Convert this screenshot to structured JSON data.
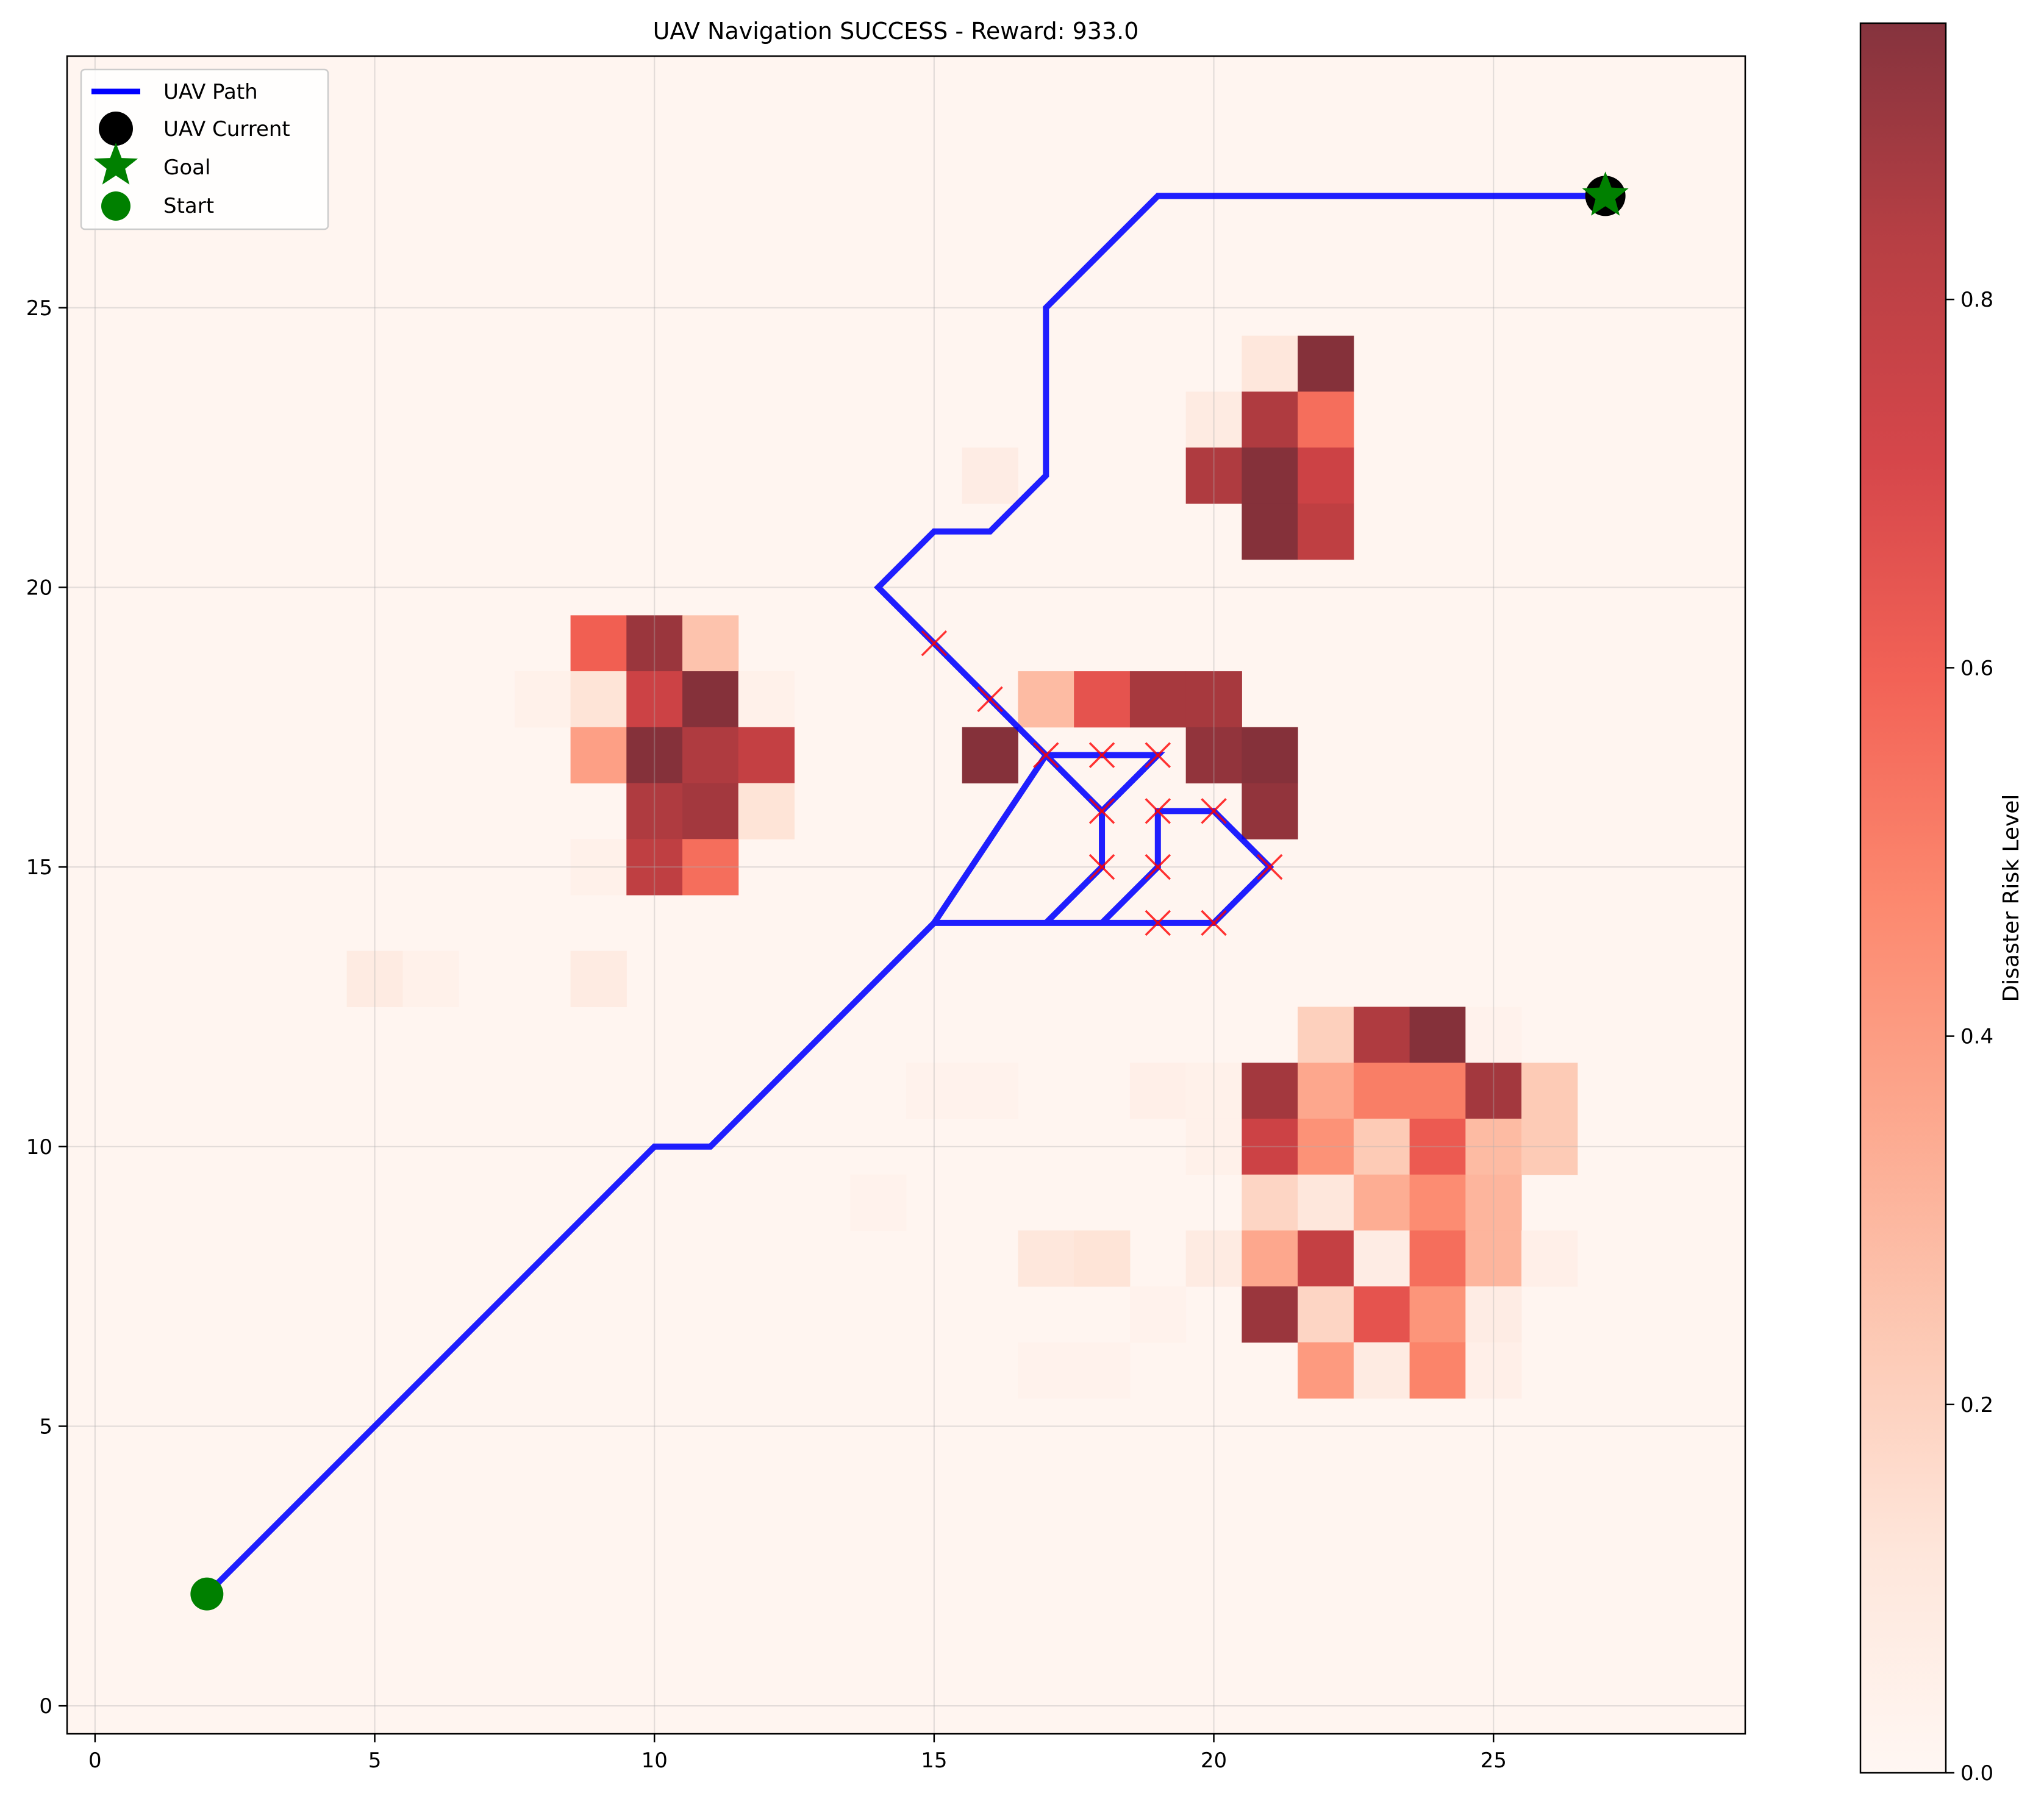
{
  "chart_data": {
    "type": "heatmap",
    "title": "UAV Navigation SUCCESS - Reward: 933.0",
    "xlabel": "",
    "ylabel": "",
    "xlim": [
      -0.5,
      29.5
    ],
    "ylim": [
      -0.5,
      29.5
    ],
    "x_ticks": [
      0,
      5,
      10,
      15,
      20,
      25
    ],
    "y_ticks": [
      0,
      5,
      10,
      15,
      20,
      25
    ],
    "x_tick_labels": [
      "0",
      "5",
      "10",
      "15",
      "20",
      "25"
    ],
    "y_tick_labels": [
      "0",
      "5",
      "10",
      "15",
      "20",
      "25"
    ],
    "grid": true,
    "colormap": "Reds",
    "colorbar": {
      "label": "Disaster Risk Level",
      "range": [
        0.0,
        0.95
      ],
      "ticks": [
        0.0,
        0.2,
        0.4,
        0.6,
        0.8
      ],
      "tick_labels": [
        "0.0",
        "0.2",
        "0.4",
        "0.6",
        "0.8"
      ]
    },
    "risk_cells": [
      [
        21,
        24,
        0.1
      ],
      [
        22,
        24,
        0.95
      ],
      [
        20,
        23,
        0.07
      ],
      [
        21,
        23,
        0.85
      ],
      [
        22,
        23,
        0.55
      ],
      [
        16,
        22,
        0.06
      ],
      [
        20,
        22,
        0.85
      ],
      [
        21,
        22,
        0.95
      ],
      [
        22,
        22,
        0.75
      ],
      [
        21,
        21,
        0.95
      ],
      [
        22,
        21,
        0.8
      ],
      [
        9,
        19,
        0.6
      ],
      [
        10,
        19,
        0.9
      ],
      [
        11,
        19,
        0.25
      ],
      [
        8,
        18,
        0.03
      ],
      [
        9,
        18,
        0.12
      ],
      [
        10,
        18,
        0.75
      ],
      [
        11,
        18,
        0.95
      ],
      [
        12,
        18,
        0.03
      ],
      [
        17,
        18,
        0.28
      ],
      [
        18,
        18,
        0.65
      ],
      [
        19,
        18,
        0.87
      ],
      [
        20,
        18,
        0.87
      ],
      [
        9,
        17,
        0.38
      ],
      [
        10,
        17,
        0.95
      ],
      [
        11,
        17,
        0.85
      ],
      [
        12,
        17,
        0.78
      ],
      [
        16,
        17,
        0.95
      ],
      [
        20,
        17,
        0.92
      ],
      [
        21,
        17,
        0.95
      ],
      [
        10,
        16,
        0.85
      ],
      [
        11,
        16,
        0.88
      ],
      [
        12,
        16,
        0.12
      ],
      [
        21,
        16,
        0.92
      ],
      [
        9,
        15,
        0.03
      ],
      [
        10,
        15,
        0.8
      ],
      [
        11,
        15,
        0.55
      ],
      [
        5,
        13,
        0.07
      ],
      [
        6,
        13,
        0.03
      ],
      [
        9,
        13,
        0.07
      ],
      [
        22,
        12,
        0.2
      ],
      [
        23,
        12,
        0.85
      ],
      [
        24,
        12,
        0.95
      ],
      [
        25,
        12,
        0.02
      ],
      [
        15,
        11,
        0.02
      ],
      [
        16,
        11,
        0.02
      ],
      [
        19,
        11,
        0.04
      ],
      [
        20,
        11,
        0.03
      ],
      [
        21,
        11,
        0.88
      ],
      [
        22,
        11,
        0.35
      ],
      [
        23,
        11,
        0.5
      ],
      [
        24,
        11,
        0.5
      ],
      [
        25,
        11,
        0.88
      ],
      [
        26,
        11,
        0.22
      ],
      [
        20,
        10,
        0.03
      ],
      [
        21,
        10,
        0.75
      ],
      [
        22,
        10,
        0.43
      ],
      [
        23,
        10,
        0.22
      ],
      [
        24,
        10,
        0.62
      ],
      [
        25,
        10,
        0.28
      ],
      [
        26,
        10,
        0.22
      ],
      [
        14,
        9,
        0.02
      ],
      [
        21,
        9,
        0.18
      ],
      [
        22,
        9,
        0.1
      ],
      [
        23,
        9,
        0.33
      ],
      [
        24,
        9,
        0.45
      ],
      [
        25,
        9,
        0.3
      ],
      [
        17,
        8,
        0.1
      ],
      [
        18,
        8,
        0.12
      ],
      [
        20,
        8,
        0.07
      ],
      [
        21,
        8,
        0.35
      ],
      [
        22,
        8,
        0.78
      ],
      [
        23,
        8,
        0.06
      ],
      [
        24,
        8,
        0.55
      ],
      [
        25,
        8,
        0.3
      ],
      [
        26,
        8,
        0.04
      ],
      [
        19,
        7,
        0.02
      ],
      [
        21,
        7,
        0.9
      ],
      [
        22,
        7,
        0.18
      ],
      [
        23,
        7,
        0.65
      ],
      [
        24,
        7,
        0.42
      ],
      [
        25,
        7,
        0.06
      ],
      [
        17,
        6,
        0.02
      ],
      [
        18,
        6,
        0.02
      ],
      [
        22,
        6,
        0.4
      ],
      [
        23,
        6,
        0.07
      ],
      [
        24,
        6,
        0.48
      ],
      [
        25,
        6,
        0.04
      ]
    ],
    "path": {
      "name": "UAV Path",
      "color": "#0000ff",
      "points": [
        [
          2,
          2
        ],
        [
          3,
          3
        ],
        [
          4,
          4
        ],
        [
          5,
          5
        ],
        [
          6,
          6
        ],
        [
          7,
          7
        ],
        [
          8,
          8
        ],
        [
          9,
          9
        ],
        [
          10,
          10
        ],
        [
          11,
          10
        ],
        [
          12,
          11
        ],
        [
          13,
          12
        ],
        [
          14,
          13
        ],
        [
          15,
          14
        ],
        [
          16,
          14
        ],
        [
          17,
          14
        ],
        [
          18,
          15
        ],
        [
          18,
          16
        ],
        [
          17,
          17
        ],
        [
          18,
          17
        ],
        [
          19,
          17
        ],
        [
          18,
          16
        ],
        [
          18,
          15
        ],
        [
          17,
          14
        ],
        [
          18,
          14
        ],
        [
          19,
          15
        ],
        [
          19,
          16
        ],
        [
          20,
          16
        ],
        [
          21,
          15
        ],
        [
          20,
          14
        ],
        [
          19,
          14
        ],
        [
          18,
          14
        ],
        [
          19,
          15
        ],
        [
          19,
          16
        ],
        [
          20,
          16
        ],
        [
          21,
          15
        ],
        [
          20,
          14
        ],
        [
          18,
          14
        ],
        [
          17,
          14
        ],
        [
          16,
          14
        ],
        [
          15,
          14
        ],
        [
          17,
          17
        ],
        [
          16,
          18
        ],
        [
          15,
          19
        ],
        [
          14,
          20
        ],
        [
          15,
          21
        ],
        [
          16,
          21
        ],
        [
          17,
          22
        ],
        [
          17,
          23
        ],
        [
          17,
          24
        ],
        [
          17,
          25
        ],
        [
          18,
          26
        ],
        [
          19,
          27
        ],
        [
          20,
          27
        ],
        [
          21,
          27
        ],
        [
          22,
          27
        ],
        [
          23,
          27
        ],
        [
          24,
          27
        ],
        [
          25,
          27
        ],
        [
          26,
          27
        ],
        [
          27,
          27
        ]
      ]
    },
    "collision_markers": [
      [
        15,
        19
      ],
      [
        16,
        18
      ],
      [
        17,
        17
      ],
      [
        18,
        17
      ],
      [
        19,
        17
      ],
      [
        18,
        16
      ],
      [
        19,
        16
      ],
      [
        20,
        16
      ],
      [
        18,
        15
      ],
      [
        19,
        15
      ],
      [
        21,
        15
      ],
      [
        19,
        14
      ],
      [
        20,
        14
      ]
    ],
    "start": [
      2,
      2
    ],
    "goal": [
      27,
      27
    ],
    "current": [
      27,
      27
    ],
    "legend": {
      "position": "upper-left",
      "entries": [
        {
          "label": "UAV Path",
          "symbol": "line",
          "color": "#0000ff"
        },
        {
          "label": "UAV Current",
          "symbol": "circle",
          "color": "#000000"
        },
        {
          "label": "Goal",
          "symbol": "star",
          "color": "#008000"
        },
        {
          "label": "Start",
          "symbol": "circle",
          "color": "#008000"
        }
      ]
    }
  }
}
